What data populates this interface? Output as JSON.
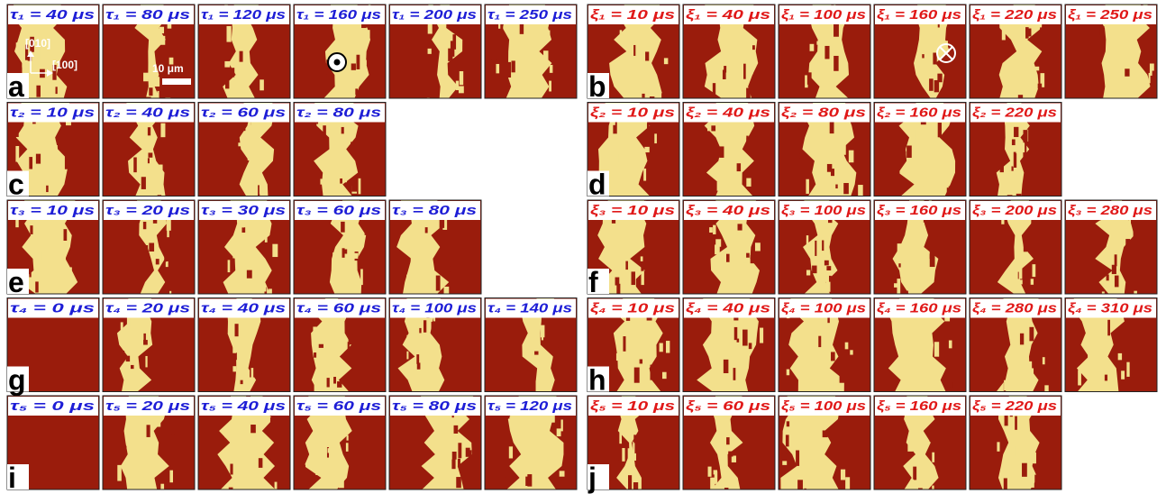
{
  "panels": [
    {
      "label": "a",
      "frames": [
        "τ₁ = 40 μs",
        "τ₁ = 80 μs",
        "τ₁ = 120 μs",
        "τ₁ = 160 μs",
        "τ₁ = 200 μs",
        "τ₁ = 250 μs"
      ]
    },
    {
      "label": "b",
      "frames": [
        "ξ₁ = 10 μs",
        "ξ₁ = 40 μs",
        "ξ₁ = 100 μs",
        "ξ₁ = 160 μs",
        "ξ₁ = 220 μs",
        "ξ₁ = 250 μs"
      ]
    },
    {
      "label": "c",
      "frames": [
        "τ₂ = 10 μs",
        "τ₂ = 40 μs",
        "τ₂ = 60 μs",
        "τ₂ = 80 μs"
      ]
    },
    {
      "label": "d",
      "frames": [
        "ξ₂ = 10 μs",
        "ξ₂ = 40 μs",
        "ξ₂ = 80 μs",
        "ξ₂ = 160 μs",
        "ξ₂ = 220 μs"
      ]
    },
    {
      "label": "e",
      "frames": [
        "τ₃ = 10 μs",
        "τ₃ = 20 μs",
        "τ₃ = 30 μs",
        "τ₃ = 60 μs",
        "τ₃ = 80 μs"
      ]
    },
    {
      "label": "f",
      "frames": [
        "ξ₃ = 10 μs",
        "ξ₃ = 40 μs",
        "ξ₃ = 100 μs",
        "ξ₃ = 160 μs",
        "ξ₃ = 200 μs",
        "ξ₃ = 280 μs"
      ]
    },
    {
      "label": "g",
      "frames": [
        "τ₄ = 0 μs",
        "τ₄ = 20 μs",
        "τ₄ = 40 μs",
        "τ₄ = 60 μs",
        "τ₄ = 100 μs",
        "τ₄ = 140 μs"
      ]
    },
    {
      "label": "h",
      "frames": [
        "ξ₄ = 10 μs",
        "ξ₄ = 40 μs",
        "ξ₄ = 100 μs",
        "ξ₄ = 160 μs",
        "ξ₄ = 280 μs",
        "ξ₄ = 310 μs"
      ]
    },
    {
      "label": "i",
      "frames": [
        "τ₅ = 0 μs",
        "τ₅ = 20 μs",
        "τ₅ = 40 μs",
        "τ₅ = 60 μs",
        "τ₅ = 80 μs",
        "τ₅ = 120 μs"
      ]
    },
    {
      "label": "j",
      "frames": [
        "ξ₅ = 10 μs",
        "ξ₅ = 60 μs",
        "ξ₅ = 100 μs",
        "ξ₅ = 160 μs",
        "ξ₅ = 220 μs"
      ]
    }
  ],
  "annotations": {
    "axis_y": "[010]",
    "axis_x": "[100]",
    "scale_bar": "10 μm"
  }
}
